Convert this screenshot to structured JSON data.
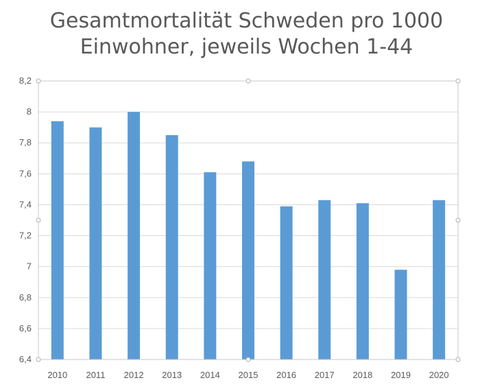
{
  "chart_data": {
    "type": "bar",
    "title_lines": [
      "Gesamtmortalität Schweden pro 1000",
      "Einwohner, jeweils Wochen 1-44"
    ],
    "categories": [
      "2010",
      "2011",
      "2012",
      "2013",
      "2014",
      "2015",
      "2016",
      "2017",
      "2018",
      "2019",
      "2020"
    ],
    "values": [
      7.94,
      7.9,
      8.0,
      7.85,
      7.61,
      7.68,
      7.39,
      7.43,
      7.41,
      6.98,
      7.43
    ],
    "ylim": [
      6.4,
      8.2
    ],
    "yticks": [
      6.4,
      6.6,
      6.8,
      7.0,
      7.2,
      7.4,
      7.6,
      7.8,
      8.0,
      8.2
    ],
    "ytick_labels": [
      "6,4",
      "6,6",
      "6,8",
      "7",
      "7,2",
      "7,4",
      "7,6",
      "7,8",
      "8",
      "8,2"
    ],
    "bar_color": "#5b9bd5",
    "grid": true,
    "legend": "none"
  }
}
